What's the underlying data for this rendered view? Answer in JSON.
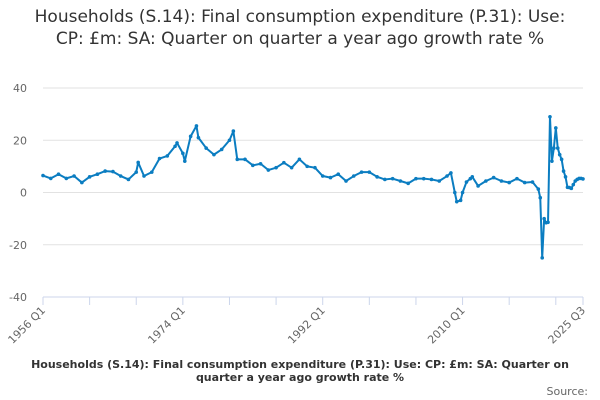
{
  "chart_data": {
    "type": "line",
    "title": "Households (S.14): Final consumption expenditure (P.31): Use: CP: £m: SA: Quarter on quarter a year ago growth rate %",
    "xlabel": "",
    "ylabel": "",
    "ylim": [
      -40,
      40
    ],
    "yticks": [
      "40",
      "20",
      "0",
      "-20",
      "-40"
    ],
    "xlim": [
      "1956 Q1",
      "2025 Q3"
    ],
    "xticks": [
      "1956 Q1",
      "1974 Q1",
      "1992 Q1",
      "2010 Q1",
      "2025 Q3"
    ],
    "grid": true,
    "color": "#0b7dc1",
    "series": [
      {
        "name": "Households (S.14): Final consumption expenditure (P.31): Use: CP: £m: SA: Quarter on quarter a year ago growth rate %",
        "points": [
          [
            "1956 Q1",
            6.5
          ],
          [
            "1957 Q1",
            5.4
          ],
          [
            "1958 Q1",
            7
          ],
          [
            "1959 Q1",
            5.4
          ],
          [
            "1960 Q1",
            6.3
          ],
          [
            "1961 Q1",
            3.8
          ],
          [
            "1962 Q1",
            6
          ],
          [
            "1963 Q1",
            7
          ],
          [
            "1964 Q1",
            8.2
          ],
          [
            "1965 Q1",
            8
          ],
          [
            "1966 Q1",
            6.3
          ],
          [
            "1967 Q1",
            5
          ],
          [
            "1968 Q1",
            7.8
          ],
          [
            "1968 Q2",
            11.5
          ],
          [
            "1969 Q1",
            6.3
          ],
          [
            "1970 Q1",
            7.8
          ],
          [
            "1971 Q1",
            13
          ],
          [
            "1972 Q1",
            14
          ],
          [
            "1973 Q1",
            17.7
          ],
          [
            "1973 Q2",
            19
          ],
          [
            "1974 Q1",
            15
          ],
          [
            "1974 Q2",
            12
          ],
          [
            "1975 Q1",
            21.5
          ],
          [
            "1975 Q4",
            25.5
          ],
          [
            "1976 Q1",
            21
          ],
          [
            "1977 Q1",
            17
          ],
          [
            "1978 Q1",
            14.5
          ],
          [
            "1979 Q1",
            16.5
          ],
          [
            "1980 Q1",
            20
          ],
          [
            "1980 Q3",
            23.5
          ],
          [
            "1981 Q1",
            12.7
          ],
          [
            "1982 Q1",
            12.7
          ],
          [
            "1983 Q1",
            10.4
          ],
          [
            "1984 Q1",
            11
          ],
          [
            "1985 Q1",
            8.6
          ],
          [
            "1986 Q1",
            9.5
          ],
          [
            "1987 Q1",
            11.4
          ],
          [
            "1988 Q1",
            9.5
          ],
          [
            "1989 Q1",
            12.7
          ],
          [
            "1990 Q1",
            10
          ],
          [
            "1991 Q1",
            9.5
          ],
          [
            "1992 Q1",
            6.3
          ],
          [
            "1993 Q1",
            5.7
          ],
          [
            "1994 Q1",
            7
          ],
          [
            "1995 Q1",
            4.4
          ],
          [
            "1996 Q1",
            6.3
          ],
          [
            "1997 Q1",
            7.8
          ],
          [
            "1998 Q1",
            7.8
          ],
          [
            "1999 Q1",
            6
          ],
          [
            "2000 Q1",
            5
          ],
          [
            "2001 Q1",
            5.3
          ],
          [
            "2002 Q1",
            4.4
          ],
          [
            "2003 Q1",
            3.5
          ],
          [
            "2004 Q1",
            5.3
          ],
          [
            "2005 Q1",
            5.3
          ],
          [
            "2006 Q1",
            5
          ],
          [
            "2007 Q1",
            4.4
          ],
          [
            "2008 Q1",
            6.3
          ],
          [
            "2008 Q3",
            7.5
          ],
          [
            "2009 Q1",
            0
          ],
          [
            "2009 Q2",
            -3.5
          ],
          [
            "2009 Q4",
            -3
          ],
          [
            "2010 Q1",
            0
          ],
          [
            "2010 Q3",
            4
          ],
          [
            "2011 Q1",
            5.3
          ],
          [
            "2011 Q2",
            6
          ],
          [
            "2012 Q1",
            2.5
          ],
          [
            "2013 Q1",
            4.4
          ],
          [
            "2014 Q1",
            5.7
          ],
          [
            "2015 Q1",
            4.4
          ],
          [
            "2016 Q1",
            3.8
          ],
          [
            "2017 Q1",
            5.3
          ],
          [
            "2018 Q1",
            3.8
          ],
          [
            "2019 Q1",
            4
          ],
          [
            "2019 Q4",
            1.3
          ],
          [
            "2020 Q1",
            -2
          ],
          [
            "2020 Q2",
            -25
          ],
          [
            "2020 Q3",
            -10
          ],
          [
            "2020 Q4",
            -11.6
          ],
          [
            "2021 Q1",
            -11.4
          ],
          [
            "2021 Q2",
            29
          ],
          [
            "2021 Q3",
            12
          ],
          [
            "2021 Q4",
            17
          ],
          [
            "2022 Q1",
            24.7
          ],
          [
            "2022 Q2",
            17
          ],
          [
            "2022 Q3",
            14.5
          ],
          [
            "2022 Q4",
            12.7
          ],
          [
            "2023 Q1",
            8.2
          ],
          [
            "2023 Q2",
            6
          ],
          [
            "2023 Q3",
            2
          ],
          [
            "2023 Q4",
            1.9
          ],
          [
            "2024 Q1",
            1.6
          ],
          [
            "2024 Q2",
            3
          ],
          [
            "2024 Q3",
            4.4
          ],
          [
            "2024 Q4",
            5
          ],
          [
            "2025 Q1",
            5.4
          ],
          [
            "2025 Q2",
            5.4
          ],
          [
            "2025 Q3",
            5.2
          ]
        ]
      }
    ],
    "legend": "bottom",
    "source_label": "Source:"
  }
}
